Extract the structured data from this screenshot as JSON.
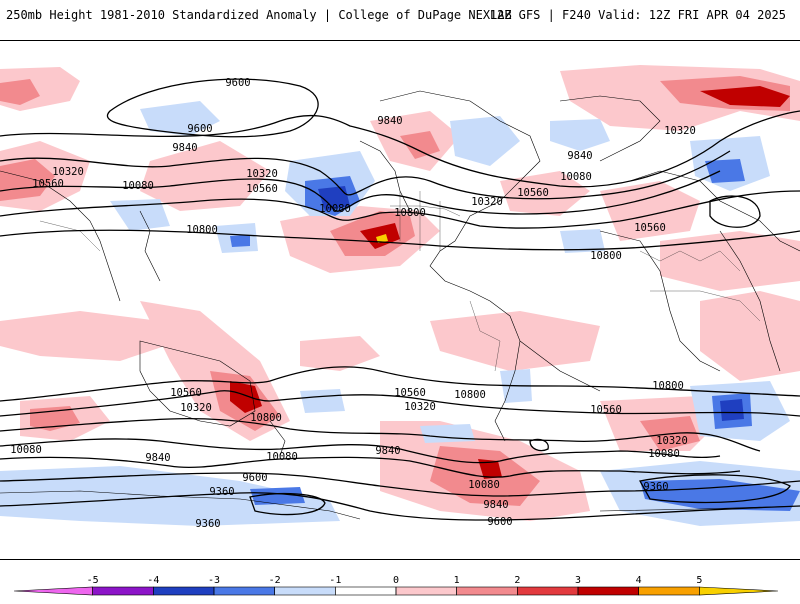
{
  "header": {
    "title": "250mb Height 1981-2010 Standardized Anomaly | College of DuPage NEXLAB",
    "run_info": "12Z GFS | F240 Valid: 12Z FRI APR 04 2025"
  },
  "map": {
    "field": "250mb height standardized anomaly",
    "contour_labels": [
      {
        "id": "c1",
        "text": "9600"
      },
      {
        "id": "c2",
        "text": "9600"
      },
      {
        "id": "c3",
        "text": "9840"
      },
      {
        "id": "c4",
        "text": "10320"
      },
      {
        "id": "c5",
        "text": "10560"
      },
      {
        "id": "c6",
        "text": "10080"
      },
      {
        "id": "c7",
        "text": "10320"
      },
      {
        "id": "c8",
        "text": "10560"
      },
      {
        "id": "c9",
        "text": "10080"
      },
      {
        "id": "c10",
        "text": "10800"
      },
      {
        "id": "c11",
        "text": "9840"
      },
      {
        "id": "c12",
        "text": "10800"
      },
      {
        "id": "c13",
        "text": "10320"
      },
      {
        "id": "c14",
        "text": "10560"
      },
      {
        "id": "c15",
        "text": "9840"
      },
      {
        "id": "c16",
        "text": "10080"
      },
      {
        "id": "c17",
        "text": "10320"
      },
      {
        "id": "c18",
        "text": "10560"
      },
      {
        "id": "c19",
        "text": "10800"
      },
      {
        "id": "c20",
        "text": "10560"
      },
      {
        "id": "c21",
        "text": "10320"
      },
      {
        "id": "c22",
        "text": "10800"
      },
      {
        "id": "c23",
        "text": "10080"
      },
      {
        "id": "c24",
        "text": "9840"
      },
      {
        "id": "c25",
        "text": "10080"
      },
      {
        "id": "c26",
        "text": "10560"
      },
      {
        "id": "c27",
        "text": "10320"
      },
      {
        "id": "c28",
        "text": "10800"
      },
      {
        "id": "c29",
        "text": "9840"
      },
      {
        "id": "c30",
        "text": "9600"
      },
      {
        "id": "c31",
        "text": "9360"
      },
      {
        "id": "c32",
        "text": "9360"
      },
      {
        "id": "c33",
        "text": "10080"
      },
      {
        "id": "c34",
        "text": "9840"
      },
      {
        "id": "c35",
        "text": "9600"
      },
      {
        "id": "c36",
        "text": "10560"
      },
      {
        "id": "c37",
        "text": "10800"
      },
      {
        "id": "c38",
        "text": "10320"
      },
      {
        "id": "c39",
        "text": "10080"
      },
      {
        "id": "c40",
        "text": "9360"
      }
    ]
  },
  "colorbar": {
    "ticks": [
      "-5",
      "-4",
      "-3",
      "-2",
      "-1",
      "0",
      "1",
      "2",
      "3",
      "4",
      "5"
    ],
    "colors": [
      "#ee66ee",
      "#8c14c8",
      "#1f3fc0",
      "#4a78e6",
      "#c8dcfa",
      "#ffffff",
      "#fcc8cc",
      "#f28a8e",
      "#e23a3e",
      "#c00000",
      "#f8a000",
      "#f8d000"
    ]
  }
}
